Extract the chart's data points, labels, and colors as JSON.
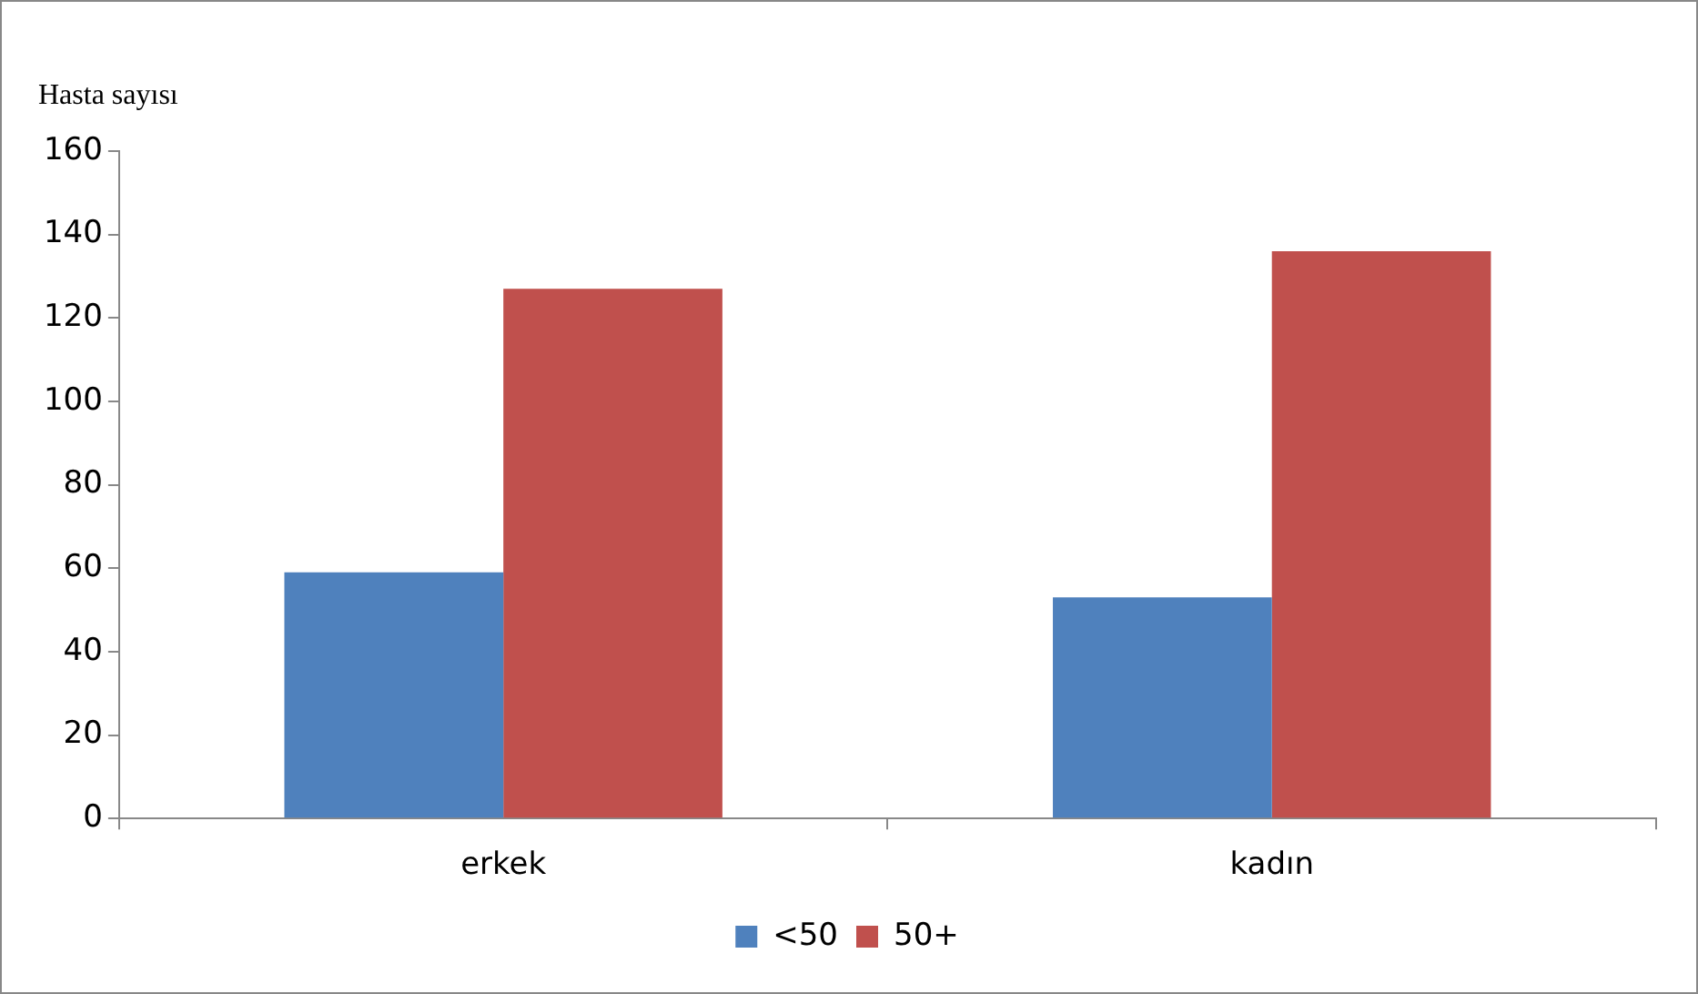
{
  "chart_data": {
    "type": "bar",
    "ylabel": "Hasta sayısı",
    "categories": [
      "erkek",
      "kadın"
    ],
    "series": [
      {
        "name": "<50",
        "color": "#4f81bd",
        "values": [
          59,
          53
        ]
      },
      {
        "name": "50+",
        "color": "#c0504d",
        "values": [
          127,
          136
        ]
      }
    ],
    "ylim": [
      0,
      160
    ],
    "yticks": [
      0,
      20,
      40,
      60,
      80,
      100,
      120,
      140,
      160
    ],
    "grid": false,
    "legend": "bottom"
  }
}
